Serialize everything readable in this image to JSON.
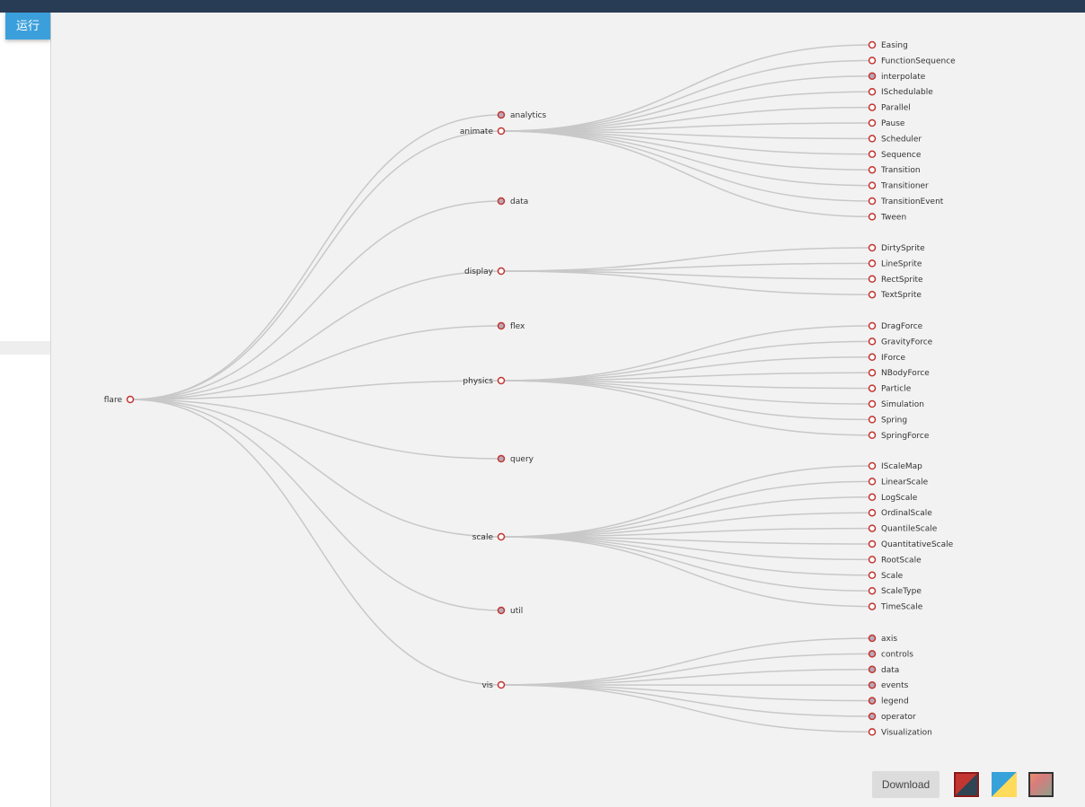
{
  "toolbar": {
    "run_label": "运行"
  },
  "chart_data": {
    "type": "tree",
    "orient": "left-to-right",
    "line_color": "#c8c8c8",
    "node_stroke_color": "#c23531",
    "expanded_fill": "#ffffff",
    "collapsed_fill": "#b9a9b7",
    "root": {
      "name": "flare",
      "collapsed": false,
      "children": [
        {
          "name": "analytics",
          "collapsed": true
        },
        {
          "name": "animate",
          "collapsed": false,
          "children": [
            {
              "name": "Easing"
            },
            {
              "name": "FunctionSequence"
            },
            {
              "name": "interpolate",
              "collapsed": true
            },
            {
              "name": "ISchedulable"
            },
            {
              "name": "Parallel"
            },
            {
              "name": "Pause"
            },
            {
              "name": "Scheduler"
            },
            {
              "name": "Sequence"
            },
            {
              "name": "Transition"
            },
            {
              "name": "Transitioner"
            },
            {
              "name": "TransitionEvent"
            },
            {
              "name": "Tween"
            }
          ]
        },
        {
          "name": "data",
          "collapsed": true
        },
        {
          "name": "display",
          "collapsed": false,
          "children": [
            {
              "name": "DirtySprite"
            },
            {
              "name": "LineSprite"
            },
            {
              "name": "RectSprite"
            },
            {
              "name": "TextSprite"
            }
          ]
        },
        {
          "name": "flex",
          "collapsed": true
        },
        {
          "name": "physics",
          "collapsed": false,
          "children": [
            {
              "name": "DragForce"
            },
            {
              "name": "GravityForce"
            },
            {
              "name": "IForce"
            },
            {
              "name": "NBodyForce"
            },
            {
              "name": "Particle"
            },
            {
              "name": "Simulation"
            },
            {
              "name": "Spring"
            },
            {
              "name": "SpringForce"
            }
          ]
        },
        {
          "name": "query",
          "collapsed": true
        },
        {
          "name": "scale",
          "collapsed": false,
          "children": [
            {
              "name": "IScaleMap"
            },
            {
              "name": "LinearScale"
            },
            {
              "name": "LogScale"
            },
            {
              "name": "OrdinalScale"
            },
            {
              "name": "QuantileScale"
            },
            {
              "name": "QuantitativeScale"
            },
            {
              "name": "RootScale"
            },
            {
              "name": "Scale"
            },
            {
              "name": "ScaleType"
            },
            {
              "name": "TimeScale"
            }
          ]
        },
        {
          "name": "util",
          "collapsed": true
        },
        {
          "name": "vis",
          "collapsed": false,
          "children": [
            {
              "name": "axis",
              "collapsed": true
            },
            {
              "name": "controls",
              "collapsed": true
            },
            {
              "name": "data",
              "collapsed": true
            },
            {
              "name": "events",
              "collapsed": true
            },
            {
              "name": "legend",
              "collapsed": true
            },
            {
              "name": "operator",
              "collapsed": true
            },
            {
              "name": "Visualization"
            }
          ]
        }
      ]
    }
  },
  "footer": {
    "download_label": "Download",
    "themes": [
      {
        "name": "theme-red-dark",
        "colors": [
          "#c23531",
          "#2f4554"
        ]
      },
      {
        "name": "theme-blue-yellow",
        "colors": [
          "#37a2da",
          "#ffdb5c"
        ]
      },
      {
        "name": "theme-salmon-grey",
        "colors": [
          "#e98f6f",
          "#919e8b"
        ]
      }
    ]
  }
}
